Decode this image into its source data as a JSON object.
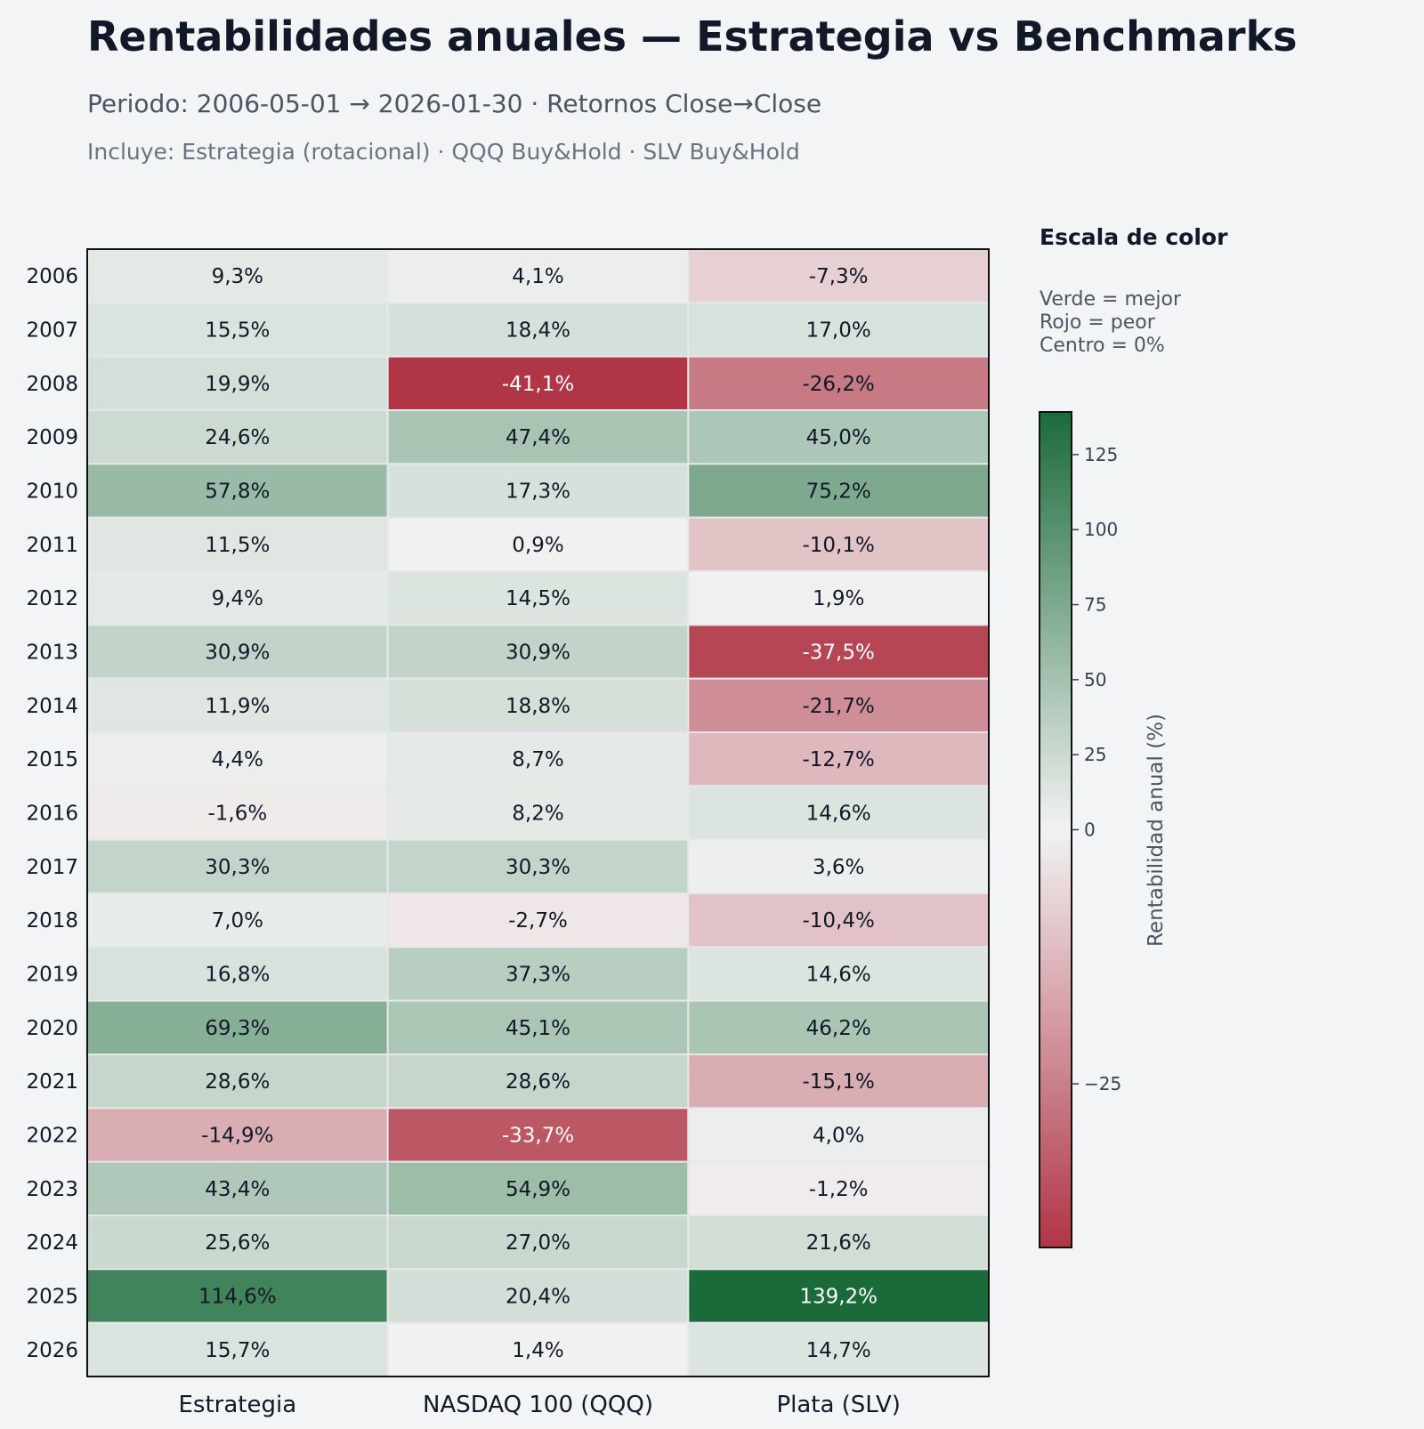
{
  "header": {
    "title": "Rentabilidades anuales — Estrategia vs Benchmarks",
    "subtitle": "Periodo: 2006-05-01 → 2026-01-30 · Retornos Close→Close",
    "includes": "Incluye: Estrategia (rotacional) · QQQ Buy&Hold · SLV Buy&Hold"
  },
  "legend": {
    "title": "Escala de color",
    "lines": [
      "Verde = mejor",
      "Rojo = peor",
      "Centro = 0%"
    ]
  },
  "chart_data": {
    "type": "heatmap",
    "rows": [
      "2006",
      "2007",
      "2008",
      "2009",
      "2010",
      "2011",
      "2012",
      "2013",
      "2014",
      "2015",
      "2016",
      "2017",
      "2018",
      "2019",
      "2020",
      "2021",
      "2022",
      "2023",
      "2024",
      "2025",
      "2026"
    ],
    "columns": [
      "Estrategia",
      "NASDAQ 100 (QQQ)",
      "Plata (SLV)"
    ],
    "values": [
      [
        9.3,
        4.1,
        -7.3
      ],
      [
        15.5,
        18.4,
        17.0
      ],
      [
        19.9,
        -41.1,
        -26.2
      ],
      [
        24.6,
        47.4,
        45.0
      ],
      [
        57.8,
        17.3,
        75.2
      ],
      [
        11.5,
        0.9,
        -10.1
      ],
      [
        9.4,
        14.5,
        1.9
      ],
      [
        30.9,
        30.9,
        -37.5
      ],
      [
        11.9,
        18.8,
        -21.7
      ],
      [
        4.4,
        8.7,
        -12.7
      ],
      [
        -1.6,
        8.2,
        14.6
      ],
      [
        30.3,
        30.3,
        3.6
      ],
      [
        7.0,
        -2.7,
        -10.4
      ],
      [
        16.8,
        37.3,
        14.6
      ],
      [
        69.3,
        45.1,
        46.2
      ],
      [
        28.6,
        28.6,
        -15.1
      ],
      [
        -14.9,
        -33.7,
        4.0
      ],
      [
        43.4,
        54.9,
        -1.2
      ],
      [
        25.6,
        27.0,
        21.6
      ],
      [
        114.6,
        20.4,
        139.2
      ],
      [
        15.7,
        1.4,
        14.7
      ]
    ],
    "labels": [
      [
        "9,3%",
        "4,1%",
        "-7,3%"
      ],
      [
        "15,5%",
        "18,4%",
        "17,0%"
      ],
      [
        "19,9%",
        "-41,1%",
        "-26,2%"
      ],
      [
        "24,6%",
        "47,4%",
        "45,0%"
      ],
      [
        "57,8%",
        "17,3%",
        "75,2%"
      ],
      [
        "11,5%",
        "0,9%",
        "-10,1%"
      ],
      [
        "9,4%",
        "14,5%",
        "1,9%"
      ],
      [
        "30,9%",
        "30,9%",
        "-37,5%"
      ],
      [
        "11,9%",
        "18,8%",
        "-21,7%"
      ],
      [
        "4,4%",
        "8,7%",
        "-12,7%"
      ],
      [
        "-1,6%",
        "8,2%",
        "14,6%"
      ],
      [
        "30,3%",
        "30,3%",
        "3,6%"
      ],
      [
        "7,0%",
        "-2,7%",
        "-10,4%"
      ],
      [
        "16,8%",
        "37,3%",
        "14,6%"
      ],
      [
        "69,3%",
        "45,1%",
        "46,2%"
      ],
      [
        "28,6%",
        "28,6%",
        "-15,1%"
      ],
      [
        "-14,9%",
        "-33,7%",
        "4,0%"
      ],
      [
        "43,4%",
        "54,9%",
        "-1,2%"
      ],
      [
        "25,6%",
        "27,0%",
        "21,6%"
      ],
      [
        "114,6%",
        "20,4%",
        "139,2%"
      ],
      [
        "15,7%",
        "1,4%",
        "14,7%"
      ]
    ],
    "colorbar": {
      "label": "Rentabilidad anual (%)",
      "ticks": [
        125,
        100,
        75,
        50,
        25,
        0,
        -25
      ],
      "tick_labels": [
        "125",
        "100",
        "75",
        "50",
        "25",
        "0",
        "−25"
      ],
      "vmin": -41.1,
      "vcenter": 0,
      "vmax": 139.2
    },
    "colors": {
      "min": "#b03545",
      "center": "#f2f2f2",
      "max": "#1b6b3a"
    }
  }
}
